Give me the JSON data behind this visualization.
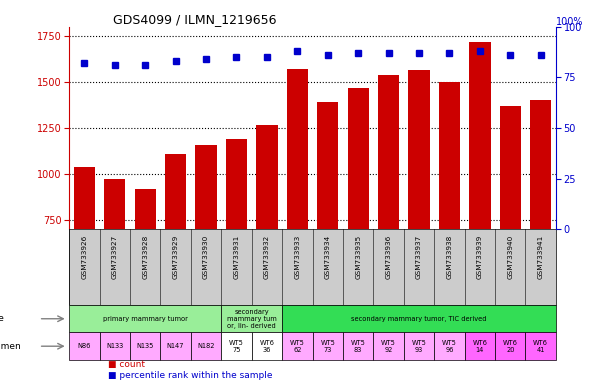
{
  "title": "GDS4099 / ILMN_1219656",
  "samples": [
    "GSM733926",
    "GSM733927",
    "GSM733928",
    "GSM733929",
    "GSM733930",
    "GSM733931",
    "GSM733932",
    "GSM733933",
    "GSM733934",
    "GSM733935",
    "GSM733936",
    "GSM733937",
    "GSM733938",
    "GSM733939",
    "GSM733940",
    "GSM733941"
  ],
  "counts": [
    1040,
    975,
    920,
    1110,
    1160,
    1190,
    1265,
    1570,
    1390,
    1465,
    1540,
    1565,
    1500,
    1720,
    1370,
    1400
  ],
  "percentile_ranks": [
    82,
    81,
    81,
    83,
    84,
    85,
    85,
    88,
    86,
    87,
    87,
    87,
    87,
    88,
    86,
    86
  ],
  "ylim_left": [
    700,
    1800
  ],
  "ylim_right": [
    0,
    100
  ],
  "yticks_left": [
    750,
    1000,
    1250,
    1500,
    1750
  ],
  "yticks_right": [
    0,
    25,
    50,
    75,
    100
  ],
  "bar_color": "#cc0000",
  "dot_color": "#0000cc",
  "tick_bg_color": "#cccccc",
  "tissue_regions": [
    {
      "text": "primary mammary tumor",
      "start": 0,
      "end": 4,
      "color": "#99ee99"
    },
    {
      "text": "secondary\nmammary tum\nor, lin- derived",
      "start": 5,
      "end": 6,
      "color": "#99ee99"
    },
    {
      "text": "secondary mammary tumor, TIC derived",
      "start": 7,
      "end": 15,
      "color": "#33dd55"
    }
  ],
  "specimen_items": [
    {
      "text": "N86",
      "start": 0,
      "end": 0,
      "color": "#ffaaff"
    },
    {
      "text": "N133",
      "start": 1,
      "end": 1,
      "color": "#ffaaff"
    },
    {
      "text": "N135",
      "start": 2,
      "end": 2,
      "color": "#ffaaff"
    },
    {
      "text": "N147",
      "start": 3,
      "end": 3,
      "color": "#ffaaff"
    },
    {
      "text": "N182",
      "start": 4,
      "end": 4,
      "color": "#ffaaff"
    },
    {
      "text": "WT5\n75",
      "start": 5,
      "end": 5,
      "color": "#ffffff"
    },
    {
      "text": "WT6\n36",
      "start": 6,
      "end": 6,
      "color": "#ffffff"
    },
    {
      "text": "WT5\n62",
      "start": 7,
      "end": 7,
      "color": "#ffaaff"
    },
    {
      "text": "WT5\n73",
      "start": 8,
      "end": 8,
      "color": "#ffaaff"
    },
    {
      "text": "WT5\n83",
      "start": 9,
      "end": 9,
      "color": "#ffaaff"
    },
    {
      "text": "WT5\n92",
      "start": 10,
      "end": 10,
      "color": "#ffaaff"
    },
    {
      "text": "WT5\n93",
      "start": 11,
      "end": 11,
      "color": "#ffaaff"
    },
    {
      "text": "WT5\n96",
      "start": 12,
      "end": 12,
      "color": "#ffaaff"
    },
    {
      "text": "WT6\n14",
      "start": 13,
      "end": 13,
      "color": "#ff66ff"
    },
    {
      "text": "WT6\n20",
      "start": 14,
      "end": 14,
      "color": "#ff66ff"
    },
    {
      "text": "WT6\n41",
      "start": 15,
      "end": 15,
      "color": "#ff66ff"
    }
  ],
  "legend_count_color": "#cc0000",
  "legend_dot_color": "#0000cc",
  "grid_color": "#000000"
}
